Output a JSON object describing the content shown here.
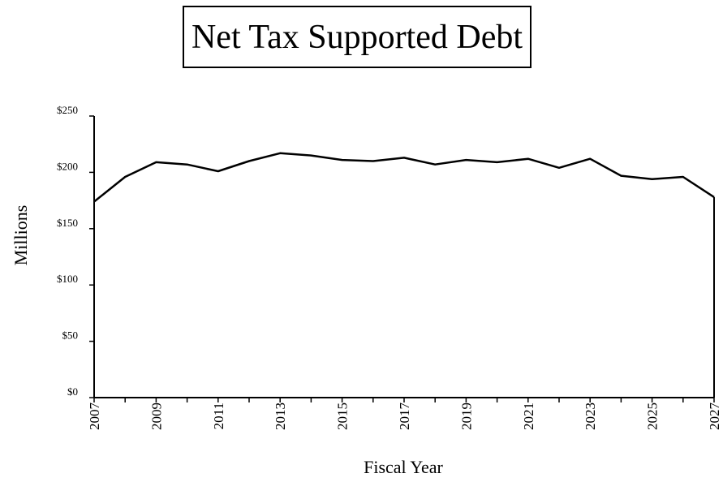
{
  "chart_data": {
    "type": "line",
    "title": "Net Tax Supported Debt",
    "xlabel": "Fiscal Year",
    "ylabel": "Millions",
    "ylim": [
      0,
      250
    ],
    "xlim": [
      2007,
      2027
    ],
    "y_ticks": [
      0,
      50,
      100,
      150,
      200,
      250
    ],
    "y_tick_labels": [
      "$0",
      "$50",
      "$100",
      "$150",
      "$200",
      "$250"
    ],
    "x_ticks": [
      2007,
      2009,
      2011,
      2013,
      2015,
      2017,
      2019,
      2021,
      2023,
      2025,
      2027
    ],
    "x_tick_labels": [
      "2007",
      "2009",
      "2011",
      "2013",
      "2015",
      "2017",
      "2019",
      "2021",
      "2023",
      "2025",
      "2027"
    ],
    "grid": false,
    "legend": "none",
    "line_color": "#000000",
    "x": [
      2007,
      2008,
      2009,
      2010,
      2011,
      2012,
      2013,
      2014,
      2015,
      2016,
      2017,
      2018,
      2019,
      2020,
      2021,
      2022,
      2023,
      2024,
      2025,
      2026,
      2027
    ],
    "series": [
      {
        "values": [
          174,
          196,
          209,
          207,
          201,
          210,
          217,
          215,
          211,
          210,
          213,
          207,
          211,
          209,
          212,
          204,
          212,
          197,
          194,
          196,
          178
        ]
      }
    ]
  }
}
